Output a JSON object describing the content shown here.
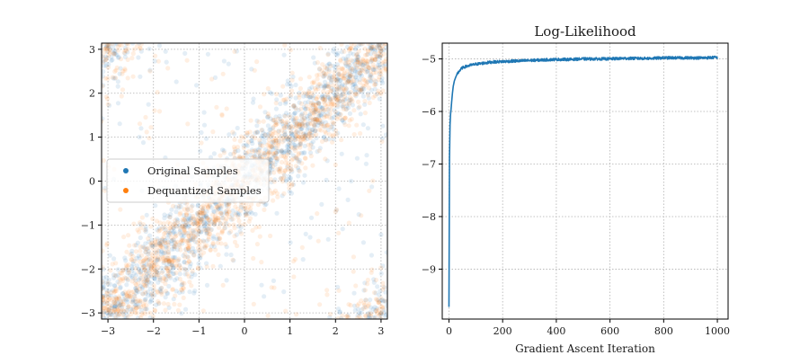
{
  "chart_data": [
    {
      "type": "scatter",
      "title": "",
      "xlabel": "",
      "ylabel": "",
      "xlim": [
        -3.14,
        3.14
      ],
      "ylim": [
        3.14,
        -3.14
      ],
      "y_inverted": true,
      "xticks": [
        -3,
        -2,
        -1,
        0,
        1,
        2,
        3
      ],
      "yticks": [
        -3,
        -2,
        -1,
        0,
        1,
        2,
        3
      ],
      "grid": true,
      "legend_position": "center-left",
      "point_alpha": 0.12,
      "pattern": {
        "description_for_generator": "samples concentrated along bands y = x + k*2pi (wrapped torus)",
        "band_offsets": [
          0,
          -6.28318,
          6.28318
        ],
        "band_spread": 0.55
      },
      "series": [
        {
          "name": "Original Samples",
          "color": "#1f77b4",
          "count": 1400
        },
        {
          "name": "Dequantized Samples",
          "color": "#ff7f0e",
          "count": 1600
        }
      ]
    },
    {
      "type": "line",
      "title": "Log-Likelihood",
      "xlabel": "Gradient Ascent Iteration",
      "ylabel": "",
      "xlim": [
        -25,
        1040
      ],
      "ylim": [
        -9.95,
        -4.7
      ],
      "xticks": [
        0,
        200,
        400,
        600,
        800,
        1000
      ],
      "yticks": [
        -9,
        -8,
        -7,
        -6,
        -5
      ],
      "grid": true,
      "series": [
        {
          "name": "",
          "color": "#1f77b4",
          "x": [
            0,
            2,
            4,
            6,
            8,
            10,
            13,
            16,
            20,
            25,
            30,
            40,
            50,
            60,
            80,
            100,
            130,
            160,
            200,
            250,
            300,
            350,
            400,
            450,
            500,
            550,
            600,
            650,
            700,
            750,
            800,
            850,
            900,
            950,
            1000
          ],
          "y": [
            -9.72,
            -6.9,
            -6.25,
            -6.05,
            -5.95,
            -5.82,
            -5.65,
            -5.52,
            -5.42,
            -5.35,
            -5.29,
            -5.22,
            -5.17,
            -5.15,
            -5.12,
            -5.1,
            -5.08,
            -5.06,
            -5.05,
            -5.04,
            -5.03,
            -5.02,
            -5.01,
            -5.01,
            -5.0,
            -5.0,
            -5.0,
            -4.99,
            -4.99,
            -4.99,
            -4.98,
            -4.98,
            -4.98,
            -4.98,
            -4.97
          ]
        }
      ]
    }
  ]
}
